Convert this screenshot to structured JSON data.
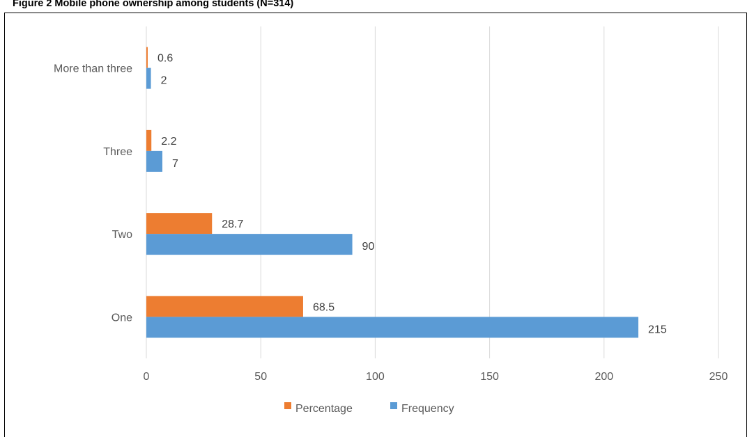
{
  "figure": {
    "title": "Figure 2 Mobile phone ownership among students (N=314)"
  },
  "colors": {
    "frequency": "#5B9BD5",
    "percentage": "#ED7D31",
    "grid": "#D9D9D9"
  },
  "chart_data": {
    "type": "bar",
    "orientation": "horizontal",
    "title": "Figure 2 Mobile phone ownership among students (N=314)",
    "categories": [
      "One",
      "Two",
      "Three",
      "More than three"
    ],
    "series": [
      {
        "name": "Frequency",
        "values": [
          215,
          90,
          7,
          2
        ]
      },
      {
        "name": "Percentage",
        "values": [
          68.5,
          28.7,
          2.2,
          0.6
        ]
      }
    ],
    "data_labels": {
      "Frequency": [
        "215",
        "90",
        "7",
        "2"
      ],
      "Percentage": [
        "68.5",
        "28.7",
        "2.2",
        "0.6"
      ]
    },
    "xlim": [
      0,
      250
    ],
    "xticks": [
      0,
      50,
      100,
      150,
      200,
      250
    ],
    "xtick_labels": [
      "0",
      "50",
      "100",
      "150",
      "200",
      "250"
    ],
    "grid": "vertical",
    "legend": "bottom",
    "legend_entries": [
      "Percentage",
      "Frequency"
    ]
  }
}
